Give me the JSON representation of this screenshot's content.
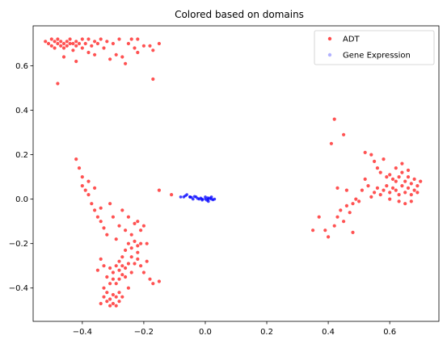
{
  "chart_data": {
    "type": "scatter",
    "title": "Colored based on domains",
    "xlabel": "",
    "ylabel": "",
    "xlim": [
      -0.56,
      0.76
    ],
    "ylim": [
      -0.55,
      0.78
    ],
    "xticks": [
      -0.4,
      -0.2,
      0.0,
      0.2,
      0.4,
      0.6
    ],
    "xtick_labels": [
      "−0.4",
      "−0.2",
      "0.0",
      "0.2",
      "0.4",
      "0.6"
    ],
    "yticks": [
      -0.4,
      -0.2,
      0.0,
      0.2,
      0.4,
      0.6
    ],
    "ytick_labels": [
      "−0.4",
      "−0.2",
      "0.0",
      "0.2",
      "0.4",
      "0.6"
    ],
    "grid": false,
    "legend_position": "top-right",
    "series": [
      {
        "name": "ADT",
        "color": "#ff0000",
        "points": [
          [
            -0.52,
            0.71
          ],
          [
            -0.51,
            0.7
          ],
          [
            -0.5,
            0.72
          ],
          [
            -0.5,
            0.69
          ],
          [
            -0.49,
            0.71
          ],
          [
            -0.49,
            0.68
          ],
          [
            -0.48,
            0.7
          ],
          [
            -0.48,
            0.72
          ],
          [
            -0.47,
            0.69
          ],
          [
            -0.47,
            0.71
          ],
          [
            -0.46,
            0.7
          ],
          [
            -0.46,
            0.68
          ],
          [
            -0.45,
            0.71
          ],
          [
            -0.45,
            0.69
          ],
          [
            -0.44,
            0.7
          ],
          [
            -0.44,
            0.72
          ],
          [
            -0.43,
            0.7
          ],
          [
            -0.43,
            0.67
          ],
          [
            -0.42,
            0.71
          ],
          [
            -0.42,
            0.69
          ],
          [
            -0.41,
            0.7
          ],
          [
            -0.4,
            0.72
          ],
          [
            -0.4,
            0.68
          ],
          [
            -0.39,
            0.7
          ],
          [
            -0.38,
            0.72
          ],
          [
            -0.37,
            0.69
          ],
          [
            -0.36,
            0.71
          ],
          [
            -0.35,
            0.7
          ],
          [
            -0.34,
            0.72
          ],
          [
            -0.33,
            0.68
          ],
          [
            -0.32,
            0.71
          ],
          [
            -0.3,
            0.7
          ],
          [
            -0.29,
            0.65
          ],
          [
            -0.28,
            0.72
          ],
          [
            -0.27,
            0.64
          ],
          [
            -0.25,
            0.7
          ],
          [
            -0.24,
            0.72
          ],
          [
            -0.23,
            0.68
          ],
          [
            -0.22,
            0.66
          ],
          [
            -0.22,
            0.72
          ],
          [
            -0.2,
            0.69
          ],
          [
            -0.18,
            0.69
          ],
          [
            -0.17,
            0.67
          ],
          [
            -0.15,
            0.7
          ],
          [
            -0.48,
            0.52
          ],
          [
            -0.17,
            0.54
          ],
          [
            -0.46,
            0.64
          ],
          [
            -0.38,
            0.66
          ],
          [
            -0.42,
            0.62
          ],
          [
            -0.31,
            0.63
          ],
          [
            -0.36,
            0.65
          ],
          [
            -0.26,
            0.61
          ],
          [
            -0.42,
            0.18
          ],
          [
            -0.41,
            0.14
          ],
          [
            -0.4,
            0.1
          ],
          [
            -0.4,
            0.06
          ],
          [
            -0.39,
            0.04
          ],
          [
            -0.38,
            0.08
          ],
          [
            -0.38,
            0.02
          ],
          [
            -0.37,
            -0.02
          ],
          [
            -0.36,
            0.05
          ],
          [
            -0.36,
            -0.05
          ],
          [
            -0.35,
            -0.08
          ],
          [
            -0.34,
            -0.1
          ],
          [
            -0.34,
            -0.04
          ],
          [
            -0.33,
            -0.13
          ],
          [
            -0.32,
            -0.16
          ],
          [
            -0.31,
            -0.02
          ],
          [
            -0.3,
            -0.08
          ],
          [
            -0.29,
            -0.18
          ],
          [
            -0.28,
            -0.12
          ],
          [
            -0.27,
            -0.05
          ],
          [
            -0.26,
            -0.14
          ],
          [
            -0.25,
            -0.08
          ],
          [
            -0.24,
            -0.16
          ],
          [
            -0.23,
            -0.11
          ],
          [
            -0.22,
            -0.1
          ],
          [
            -0.21,
            -0.14
          ],
          [
            -0.2,
            -0.12
          ],
          [
            -0.15,
            0.04
          ],
          [
            -0.11,
            0.02
          ],
          [
            -0.19,
            -0.2
          ],
          [
            -0.25,
            -0.2
          ],
          [
            -0.24,
            -0.22
          ],
          [
            -0.23,
            -0.19
          ],
          [
            -0.22,
            -0.21
          ],
          [
            -0.21,
            -0.2
          ],
          [
            -0.22,
            -0.24
          ],
          [
            -0.24,
            -0.26
          ],
          [
            -0.26,
            -0.23
          ],
          [
            -0.27,
            -0.26
          ],
          [
            -0.28,
            -0.28
          ],
          [
            -0.29,
            -0.3
          ],
          [
            -0.28,
            -0.32
          ],
          [
            -0.27,
            -0.34
          ],
          [
            -0.26,
            -0.31
          ],
          [
            -0.25,
            -0.29
          ],
          [
            -0.24,
            -0.33
          ],
          [
            -0.3,
            -0.33
          ],
          [
            -0.31,
            -0.31
          ],
          [
            -0.32,
            -0.35
          ],
          [
            -0.31,
            -0.38
          ],
          [
            -0.3,
            -0.36
          ],
          [
            -0.29,
            -0.38
          ],
          [
            -0.28,
            -0.36
          ],
          [
            -0.27,
            -0.3
          ],
          [
            -0.26,
            -0.35
          ],
          [
            -0.23,
            -0.29
          ],
          [
            -0.22,
            -0.27
          ],
          [
            -0.21,
            -0.3
          ],
          [
            -0.2,
            -0.33
          ],
          [
            -0.19,
            -0.28
          ],
          [
            -0.18,
            -0.36
          ],
          [
            -0.17,
            -0.38
          ],
          [
            -0.33,
            -0.3
          ],
          [
            -0.34,
            -0.27
          ],
          [
            -0.35,
            -0.32
          ],
          [
            -0.33,
            -0.4
          ],
          [
            -0.15,
            -0.37
          ],
          [
            -0.25,
            -0.4
          ],
          [
            -0.33,
            -0.44
          ],
          [
            -0.32,
            -0.46
          ],
          [
            -0.31,
            -0.45
          ],
          [
            -0.3,
            -0.47
          ],
          [
            -0.31,
            -0.48
          ],
          [
            -0.29,
            -0.44
          ],
          [
            -0.28,
            -0.46
          ],
          [
            -0.3,
            -0.43
          ],
          [
            -0.32,
            -0.42
          ],
          [
            -0.27,
            -0.44
          ],
          [
            -0.34,
            -0.47
          ],
          [
            -0.29,
            -0.48
          ],
          [
            -0.28,
            -0.42
          ],
          [
            0.42,
            0.36
          ],
          [
            0.41,
            0.25
          ],
          [
            0.45,
            0.29
          ],
          [
            0.52,
            0.21
          ],
          [
            0.54,
            0.2
          ],
          [
            0.55,
            0.17
          ],
          [
            0.58,
            0.18
          ],
          [
            0.56,
            0.14
          ],
          [
            0.57,
            0.12
          ],
          [
            0.59,
            0.1
          ],
          [
            0.6,
            0.11
          ],
          [
            0.61,
            0.09
          ],
          [
            0.62,
            0.08
          ],
          [
            0.63,
            0.1
          ],
          [
            0.64,
            0.06
          ],
          [
            0.65,
            0.08
          ],
          [
            0.66,
            0.05
          ],
          [
            0.67,
            0.07
          ],
          [
            0.68,
            0.04
          ],
          [
            0.69,
            0.06
          ],
          [
            0.7,
            0.08
          ],
          [
            0.62,
            0.04
          ],
          [
            0.63,
            0.02
          ],
          [
            0.64,
            0.12
          ],
          [
            0.65,
            0.03
          ],
          [
            0.66,
            0.1
          ],
          [
            0.67,
            0.02
          ],
          [
            0.68,
            0.09
          ],
          [
            0.69,
            0.03
          ],
          [
            0.61,
            0.05
          ],
          [
            0.6,
            0.03
          ],
          [
            0.59,
            0.06
          ],
          [
            0.58,
            0.04
          ],
          [
            0.57,
            0.02
          ],
          [
            0.56,
            0.05
          ],
          [
            0.55,
            0.03
          ],
          [
            0.54,
            0.01
          ],
          [
            0.53,
            0.06
          ],
          [
            0.52,
            0.09
          ],
          [
            0.51,
            0.04
          ],
          [
            0.62,
            0.14
          ],
          [
            0.64,
            0.16
          ],
          [
            0.66,
            0.13
          ],
          [
            0.63,
            -0.01
          ],
          [
            0.65,
            -0.02
          ],
          [
            0.67,
            -0.01
          ],
          [
            0.6,
            0.0
          ],
          [
            0.48,
            -0.02
          ],
          [
            0.46,
            -0.03
          ],
          [
            0.44,
            -0.05
          ],
          [
            0.43,
            -0.08
          ],
          [
            0.45,
            -0.1
          ],
          [
            0.47,
            -0.06
          ],
          [
            0.42,
            -0.12
          ],
          [
            0.39,
            -0.14
          ],
          [
            0.35,
            -0.14
          ],
          [
            0.37,
            -0.08
          ],
          [
            0.4,
            -0.17
          ],
          [
            0.48,
            -0.15
          ],
          [
            0.43,
            0.05
          ],
          [
            0.46,
            0.04
          ],
          [
            0.49,
            0.0
          ],
          [
            0.5,
            -0.01
          ]
        ]
      },
      {
        "name": "Gene Expression",
        "color": "#0000ff",
        "points": [
          [
            -0.08,
            0.01
          ],
          [
            -0.07,
            0.01
          ],
          [
            -0.06,
            0.02
          ],
          [
            -0.05,
            0.01
          ],
          [
            -0.04,
            0.0
          ],
          [
            -0.03,
            0.01
          ],
          [
            -0.02,
            0.0
          ],
          [
            -0.01,
            0.0
          ],
          [
            0.0,
            0.0
          ],
          [
            0.0,
            0.01
          ],
          [
            0.01,
            0.0
          ],
          [
            0.01,
            -0.01
          ],
          [
            0.02,
            0.0
          ],
          [
            0.02,
            0.01
          ],
          [
            0.03,
            0.0
          ],
          [
            -0.015,
            0.005
          ],
          [
            0.005,
            -0.005
          ],
          [
            0.015,
            0.005
          ],
          [
            0.025,
            -0.003
          ],
          [
            -0.035,
            0.012
          ],
          [
            -0.045,
            0.008
          ],
          [
            -0.065,
            0.015
          ],
          [
            -0.05,
            0.01
          ],
          [
            -0.01,
            -0.004
          ],
          [
            0.008,
            0.006
          ],
          [
            -0.025,
            0.003
          ]
        ]
      }
    ]
  }
}
